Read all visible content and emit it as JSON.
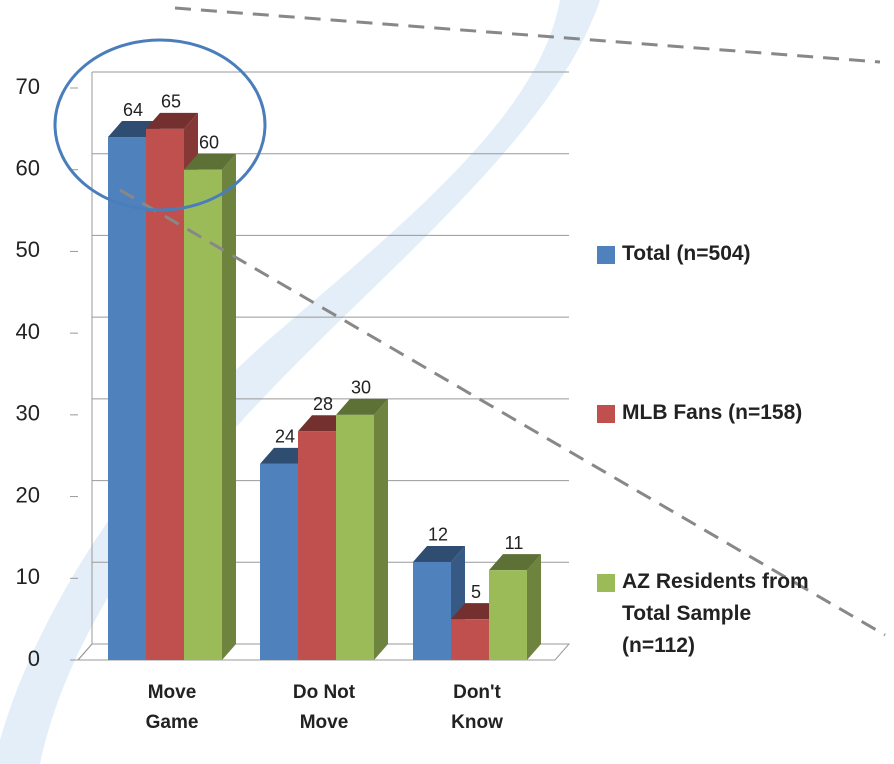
{
  "chart_data": {
    "type": "bar3d",
    "categories": [
      "Move Game",
      "Do Not Move",
      "Don't Know"
    ],
    "series": [
      {
        "name": "Total (n=504)",
        "color": "#4f81bd",
        "values": [
          64,
          24,
          12
        ]
      },
      {
        "name": "MLB Fans (n=158)",
        "color": "#c0504d",
        "values": [
          65,
          28,
          5
        ]
      },
      {
        "name": "AZ Residents from Total Sample (n=112)",
        "color": "#9bbb59",
        "values": [
          60,
          30,
          11
        ]
      }
    ],
    "ylim": [
      0,
      70
    ],
    "yticks": [
      0,
      10,
      20,
      30,
      40,
      50,
      60,
      70
    ],
    "grid": true,
    "legend": "right"
  }
}
